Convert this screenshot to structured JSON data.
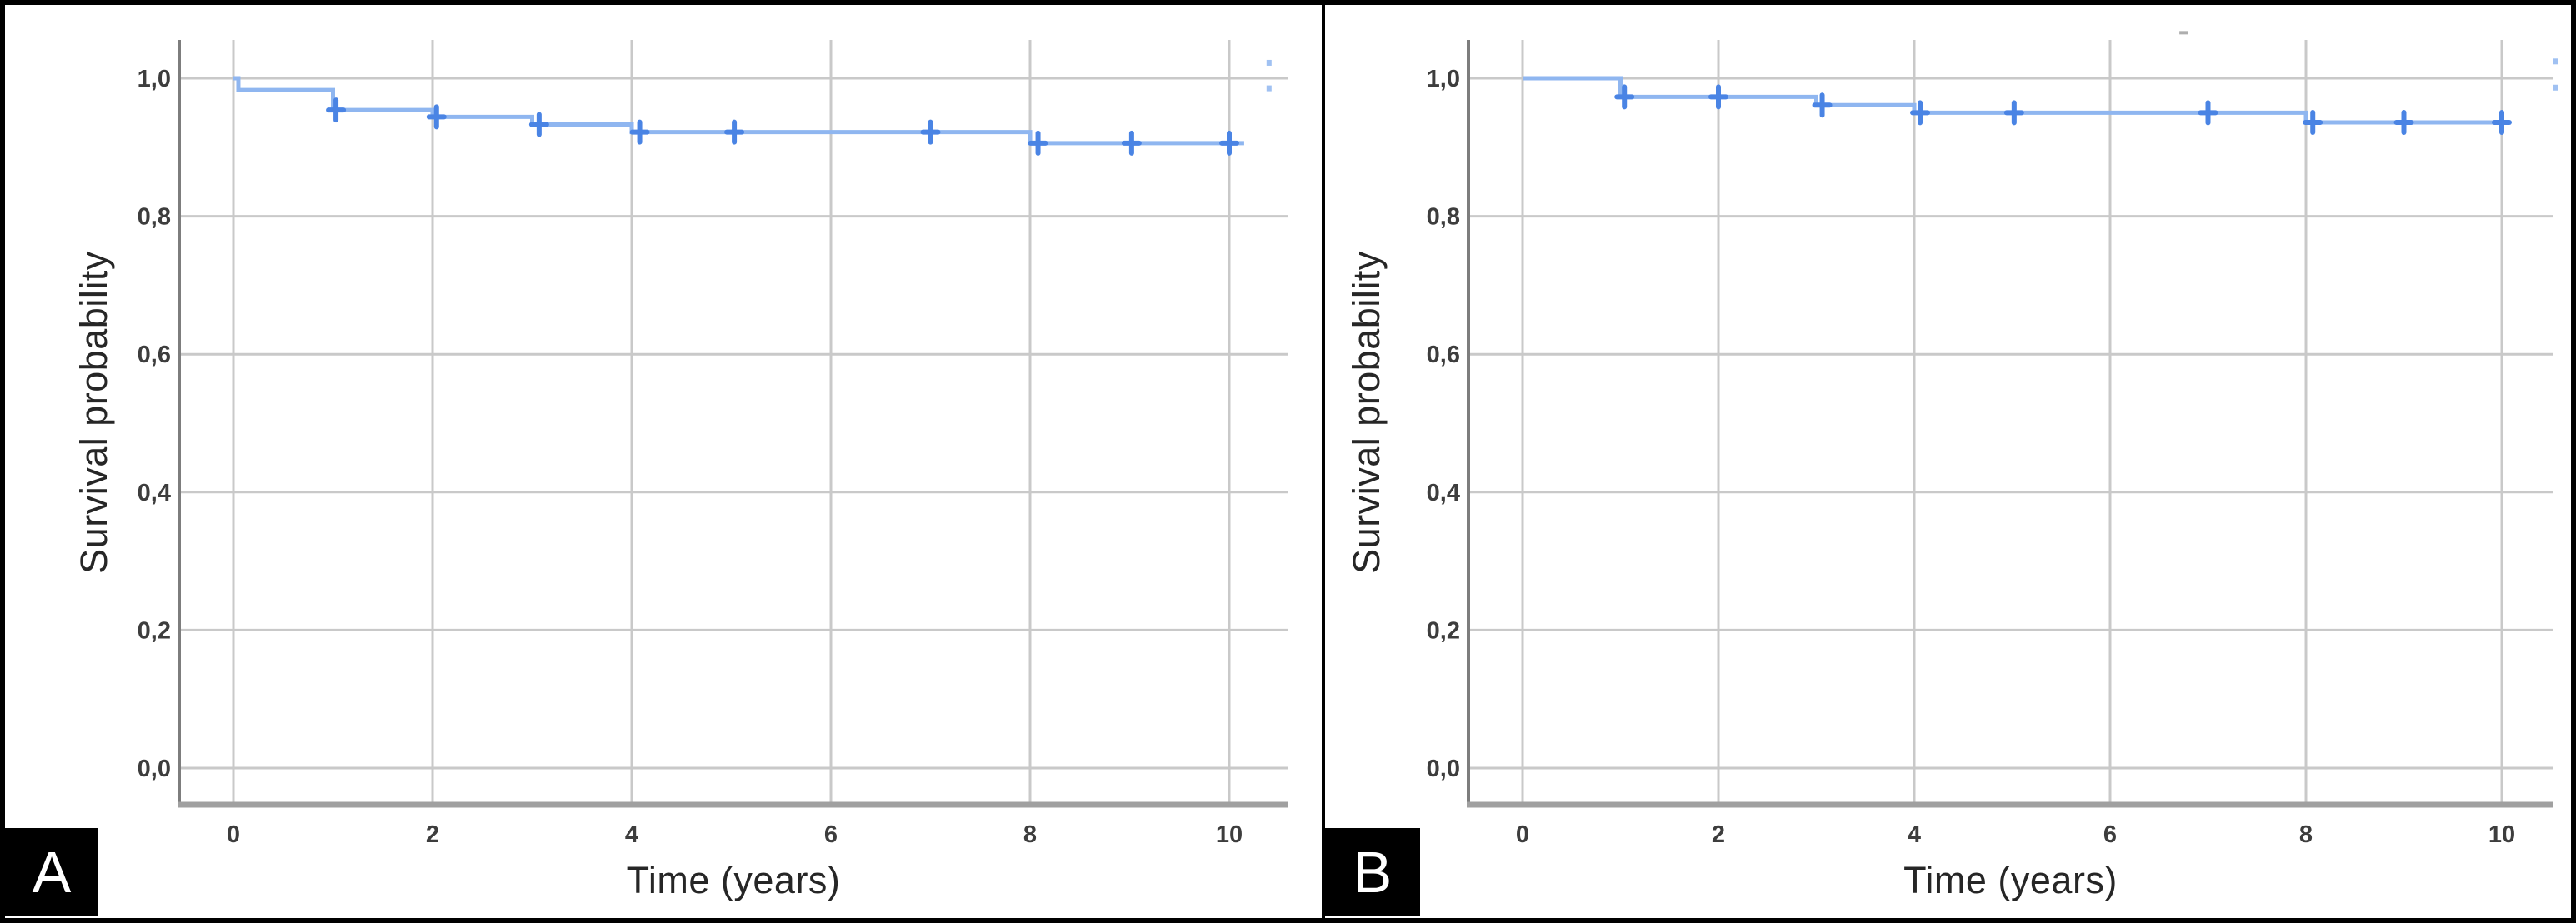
{
  "figure": {
    "type": "two-panel Kaplan-Meier survival figure",
    "background": "#ffffff",
    "border_color": "#000000"
  },
  "colors": {
    "curve_line": "#8fb6f0",
    "censor_mark": "#4a84e4",
    "gridline": "#c9c9c9",
    "y_axis_line": "#7d7d7d",
    "x_axis_line": "#a0a0a0",
    "tick_text": "#3d3d3d",
    "title_text": "#262626",
    "badge_bg": "#000000",
    "badge_fg": "#ffffff"
  },
  "chart_data": [
    {
      "type": "line",
      "subtype": "kaplan-meier-step",
      "panel_label": "A",
      "title": "",
      "xlabel": "Time (years)",
      "ylabel": "Survival probability",
      "grid": true,
      "legend": "none",
      "xlim": [
        -0.55,
        10.6
      ],
      "ylim": [
        -0.05,
        1.06
      ],
      "x_ticks": [
        {
          "label": "0",
          "value": 0
        },
        {
          "label": "2",
          "value": 2
        },
        {
          "label": "4",
          "value": 4
        },
        {
          "label": "6",
          "value": 6
        },
        {
          "label": "8",
          "value": 8
        },
        {
          "label": "10",
          "value": 10
        }
      ],
      "y_ticks": [
        {
          "label": "1,0",
          "value": 1.0
        },
        {
          "label": "0,8",
          "value": 0.8
        },
        {
          "label": "0,6",
          "value": 0.6
        },
        {
          "label": "0,4",
          "value": 0.4
        },
        {
          "label": "0,2",
          "value": 0.2
        },
        {
          "label": "0,0",
          "value": 0.0
        }
      ],
      "steps": [
        [
          0,
          1.0
        ],
        [
          0.05,
          0.983
        ],
        [
          1,
          0.954
        ],
        [
          2,
          0.944
        ],
        [
          3,
          0.933
        ],
        [
          4,
          0.922
        ],
        [
          8,
          0.906
        ]
      ],
      "end_time": 10.15,
      "censors": [
        [
          1.03,
          0.954
        ],
        [
          2.04,
          0.944
        ],
        [
          3.07,
          0.933
        ],
        [
          4.08,
          0.922
        ],
        [
          5.03,
          0.922
        ],
        [
          7.0,
          0.922
        ],
        [
          8.08,
          0.906
        ],
        [
          9.02,
          0.906
        ],
        [
          10.0,
          0.906
        ]
      ],
      "artifact_specks": [
        [
          10.4,
          1.023
        ],
        [
          10.4,
          0.986
        ]
      ],
      "dust_specks": []
    },
    {
      "type": "line",
      "subtype": "kaplan-meier-step",
      "panel_label": "B",
      "title": "",
      "xlabel": "Time (years)",
      "ylabel": "Survival probability",
      "grid": true,
      "legend": "none",
      "xlim": [
        -0.55,
        10.6
      ],
      "ylim": [
        -0.05,
        1.06
      ],
      "x_ticks": [
        {
          "label": "0",
          "value": 0
        },
        {
          "label": "2",
          "value": 2
        },
        {
          "label": "4",
          "value": 4
        },
        {
          "label": "6",
          "value": 6
        },
        {
          "label": "8",
          "value": 8
        },
        {
          "label": "10",
          "value": 10
        }
      ],
      "y_ticks": [
        {
          "label": "1,0",
          "value": 1.0
        },
        {
          "label": "0,8",
          "value": 0.8
        },
        {
          "label": "0,6",
          "value": 0.6
        },
        {
          "label": "0,4",
          "value": 0.4
        },
        {
          "label": "0,2",
          "value": 0.2
        },
        {
          "label": "0,0",
          "value": 0.0
        }
      ],
      "steps": [
        [
          0,
          1.0
        ],
        [
          1,
          0.973
        ],
        [
          3,
          0.961
        ],
        [
          4,
          0.95
        ],
        [
          8,
          0.936
        ]
      ],
      "end_time": 10.08,
      "censors": [
        [
          1.04,
          0.973
        ],
        [
          2.0,
          0.973
        ],
        [
          3.06,
          0.961
        ],
        [
          4.06,
          0.95
        ],
        [
          5.02,
          0.95
        ],
        [
          7.0,
          0.95
        ],
        [
          8.07,
          0.936
        ],
        [
          9.0,
          0.936
        ],
        [
          10.0,
          0.936
        ]
      ],
      "artifact_specks": [
        [
          10.55,
          1.025
        ],
        [
          10.55,
          0.987
        ]
      ],
      "dust_specks": [
        [
          6.75,
          1.066
        ]
      ]
    }
  ]
}
